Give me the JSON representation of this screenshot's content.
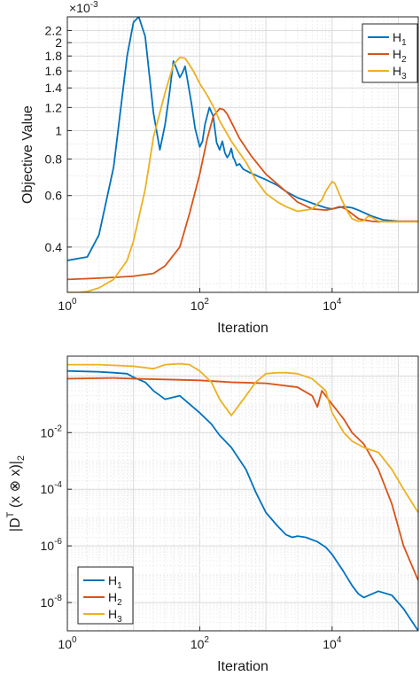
{
  "chart_data": [
    {
      "type": "line",
      "xlabel": "Iteration",
      "ylabel": "Objective Value",
      "xscale": "log",
      "yscale": "log",
      "xlim": [
        1,
        200000
      ],
      "ylim": [
        0.00028,
        0.00245
      ],
      "y_multiplier_label": "×10⁻³",
      "grid": true,
      "legend": "top-right",
      "x_ticks": [
        {
          "value": 1,
          "base": "10",
          "exp": "0"
        },
        {
          "value": 100,
          "base": "10",
          "exp": "2"
        },
        {
          "value": 10000,
          "base": "10",
          "exp": "4"
        }
      ],
      "y_ticks": [
        {
          "value": 0.0004,
          "label": "0.4"
        },
        {
          "value": 0.0006,
          "label": "0.6"
        },
        {
          "value": 0.0008,
          "label": "0.8"
        },
        {
          "value": 0.001,
          "label": "1"
        },
        {
          "value": 0.0012,
          "label": "1.2"
        },
        {
          "value": 0.0014,
          "label": "1.4"
        },
        {
          "value": 0.0016,
          "label": "1.6"
        },
        {
          "value": 0.0018,
          "label": "1.8"
        },
        {
          "value": 0.002,
          "label": "2"
        },
        {
          "value": 0.0022,
          "label": "2.2"
        }
      ],
      "series": [
        {
          "name": "H",
          "sub": "1",
          "color": "#0072BD",
          "x": [
            1,
            2,
            3,
            5,
            8,
            10,
            12,
            15,
            20,
            25,
            30,
            35,
            40,
            45,
            50,
            55,
            60,
            65,
            75,
            85,
            100,
            110,
            120,
            140,
            160,
            180,
            200,
            220,
            240,
            260,
            280,
            300,
            320,
            340,
            360,
            400,
            450,
            500,
            600,
            800,
            1000,
            1500,
            2000,
            3000,
            5000,
            8000,
            10000,
            12000,
            15000,
            20000,
            25000,
            30000,
            40000,
            60000,
            100000,
            200000
          ],
          "y": [
            0.00036,
            0.00037,
            0.00044,
            0.00075,
            0.0018,
            0.00235,
            0.00245,
            0.0021,
            0.00115,
            0.00086,
            0.00105,
            0.00135,
            0.00173,
            0.00162,
            0.00152,
            0.00158,
            0.00166,
            0.0015,
            0.00124,
            0.00102,
            0.00088,
            0.00092,
            0.00105,
            0.0012,
            0.00112,
            0.00091,
            0.00086,
            0.00092,
            0.00084,
            0.00081,
            0.00083,
            0.00087,
            0.00081,
            0.00079,
            0.00076,
            0.00077,
            0.00074,
            0.00073,
            0.000715,
            0.000695,
            0.00068,
            0.00065,
            0.00062,
            0.00059,
            0.000565,
            0.000545,
            0.00054,
            0.000545,
            0.00055,
            0.000545,
            0.000535,
            0.000525,
            0.00051,
            0.000495,
            0.00049,
            0.00049
          ]
        },
        {
          "name": "H",
          "sub": "2",
          "color": "#D95319",
          "x": [
            1,
            2,
            5,
            10,
            20,
            30,
            50,
            70,
            100,
            130,
            160,
            200,
            230,
            260,
            300,
            400,
            600,
            1000,
            2000,
            3000,
            5000,
            8000,
            10000,
            13000,
            16000,
            20000,
            25000,
            30000,
            40000,
            50000,
            70000,
            100000,
            200000
          ],
          "y": [
            0.00031,
            0.000312,
            0.000315,
            0.000318,
            0.000325,
            0.000345,
            0.0004,
            0.00052,
            0.00071,
            0.00094,
            0.00112,
            0.00119,
            0.00118,
            0.00114,
            0.00107,
            0.00094,
            0.00082,
            0.00071,
            0.00062,
            0.00057,
            0.00054,
            0.000535,
            0.00054,
            0.00055,
            0.00054,
            0.00052,
            0.0005,
            0.000495,
            0.00049,
            0.000488,
            0.00049,
            0.00049,
            0.00049
          ]
        },
        {
          "name": "H",
          "sub": "3",
          "color": "#EDB120",
          "x": [
            1,
            1.5,
            2,
            3,
            5,
            8,
            10,
            15,
            20,
            30,
            40,
            50,
            60,
            70,
            80,
            100,
            130,
            170,
            200,
            300,
            500,
            700,
            1000,
            1500,
            2000,
            3000,
            5000,
            7000,
            8000,
            10000,
            11000,
            12000,
            14000,
            17000,
            20000,
            25000,
            30000,
            35000,
            40000,
            50000,
            70000,
            100000,
            200000
          ],
          "y": [
            0.00028,
            0.00028,
            0.000282,
            0.00029,
            0.00031,
            0.00036,
            0.00042,
            0.00063,
            0.00095,
            0.00135,
            0.00168,
            0.00178,
            0.00177,
            0.00168,
            0.0016,
            0.00145,
            0.00132,
            0.00118,
            0.00108,
            0.00092,
            0.00078,
            0.00068,
            0.00061,
            0.00057,
            0.00055,
            0.00053,
            0.00054,
            0.00058,
            0.00062,
            0.00067,
            0.00066,
            0.00063,
            0.00058,
            0.00053,
            0.0005,
            0.00049,
            0.000492,
            0.00051,
            0.000505,
            0.00049,
            0.000488,
            0.000488,
            0.000488
          ]
        }
      ]
    },
    {
      "type": "line",
      "xlabel": "Iteration",
      "ylabel_parts": {
        "pre": "|D",
        "sup": "T",
        "mid": " (x ⊗ x)|",
        "sub": "2"
      },
      "xscale": "log",
      "yscale": "log",
      "xlim": [
        1,
        200000
      ],
      "ylim": [
        1e-09,
        5
      ],
      "grid": true,
      "legend": "bottom-left",
      "x_ticks": [
        {
          "value": 1,
          "base": "10",
          "exp": "0"
        },
        {
          "value": 100,
          "base": "10",
          "exp": "2"
        },
        {
          "value": 10000,
          "base": "10",
          "exp": "4"
        }
      ],
      "y_ticks": [
        {
          "value": 1e-08,
          "base": "10",
          "exp": "-8"
        },
        {
          "value": 1e-06,
          "base": "10",
          "exp": "-6"
        },
        {
          "value": 0.0001,
          "base": "10",
          "exp": "-4"
        },
        {
          "value": 0.01,
          "base": "10",
          "exp": "-2"
        }
      ],
      "series": [
        {
          "name": "H",
          "sub": "1",
          "color": "#0072BD",
          "x": [
            1,
            3,
            5,
            8,
            10,
            15,
            20,
            30,
            50,
            100,
            150,
            200,
            300,
            500,
            700,
            1000,
            1500,
            2000,
            2500,
            3000,
            4000,
            6000,
            8000,
            10000,
            15000,
            20000,
            25000,
            30000,
            50000,
            80000,
            120000,
            200000
          ],
          "y": [
            1.5,
            1.4,
            1.3,
            1.2,
            0.9,
            0.6,
            0.3,
            0.15,
            0.2,
            0.05,
            0.02,
            0.008,
            0.003,
            0.0005,
            8e-05,
            1.5e-05,
            5e-06,
            2.5e-06,
            2e-06,
            2.2e-06,
            2e-06,
            1.4e-06,
            9e-07,
            5e-07,
            1.2e-07,
            4e-08,
            2e-08,
            1.5e-08,
            2.5e-08,
            1.8e-08,
            6e-09,
            1e-09
          ]
        },
        {
          "name": "H",
          "sub": "2",
          "color": "#D95319",
          "x": [
            1,
            5,
            10,
            30,
            100,
            300,
            1000,
            3000,
            5000,
            6000,
            7000,
            10000,
            15000,
            20000,
            30000,
            50000,
            80000,
            120000,
            200000
          ],
          "y": [
            0.8,
            0.85,
            0.8,
            0.75,
            0.7,
            0.6,
            0.55,
            0.4,
            0.2,
            0.08,
            0.3,
            0.1,
            0.03,
            0.01,
            0.004,
            0.0005,
            3e-05,
            1e-06,
            6e-08
          ]
        },
        {
          "name": "H",
          "sub": "3",
          "color": "#EDB120",
          "x": [
            1,
            3,
            10,
            20,
            30,
            50,
            70,
            100,
            150,
            200,
            300,
            500,
            700,
            1000,
            1500,
            2000,
            3000,
            5000,
            8000,
            10000,
            15000,
            20000,
            30000,
            50000,
            80000,
            120000,
            200000
          ],
          "y": [
            2.5,
            2.5,
            2.2,
            1.8,
            2.5,
            2.7,
            2.5,
            1.5,
            0.6,
            0.15,
            0.04,
            0.2,
            0.6,
            1.2,
            1.3,
            1.3,
            1.2,
            0.8,
            0.3,
            0.05,
            0.01,
            0.005,
            0.003,
            0.002,
            0.0005,
            0.0001,
            1.5e-05
          ]
        }
      ]
    }
  ]
}
